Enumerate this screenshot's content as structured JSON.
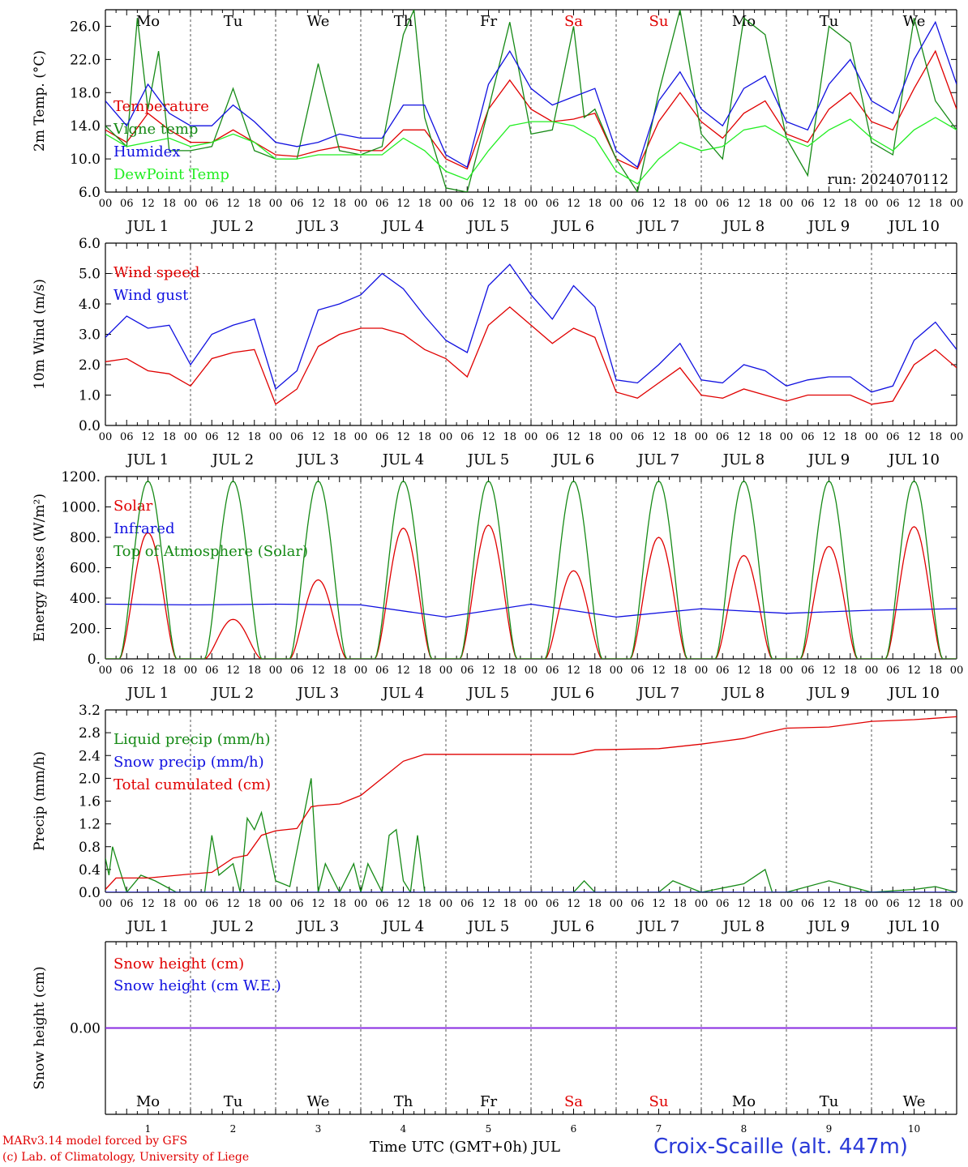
{
  "colors": {
    "red": "#e00000",
    "darkgreen": "#168a16",
    "blue": "#1010e0",
    "lightgreen": "#22ee22",
    "purple": "#8a2be2",
    "axis": "#000000",
    "grid": "#555555",
    "station": "#2a3ad8"
  },
  "timeline": {
    "days": 10,
    "steps_per_day": 24,
    "hour_ticks": [
      "00",
      "06",
      "12",
      "18"
    ],
    "final_tick": "00",
    "day_labels": [
      "JUL  1",
      "JUL  2",
      "JUL  3",
      "JUL  4",
      "JUL  5",
      "JUL  6",
      "JUL  7",
      "JUL  8",
      "JUL  9",
      "JUL 10"
    ],
    "weekdays": [
      "Mo",
      "Tu",
      "We",
      "Th",
      "Fr",
      "Sa",
      "Su",
      "Mo",
      "Tu",
      "We"
    ],
    "weekday_colors": [
      "#000000",
      "#000000",
      "#000000",
      "#000000",
      "#000000",
      "#e00000",
      "#e00000",
      "#000000",
      "#000000",
      "#000000"
    ],
    "day_numbers": [
      "1",
      "2",
      "3",
      "4",
      "5",
      "6",
      "7",
      "8",
      "9",
      "10"
    ]
  },
  "footer": {
    "credit_line1": "MARv3.14 model forced by GFS",
    "credit_line2": "(c) Lab. of Climatology, University of Liege",
    "xaxis_title": "Time UTC (GMT+0h) JUL",
    "station": "Croix-Scaille (alt. 447m)"
  },
  "chart_data": [
    {
      "type": "line",
      "ylabel": "2m Temp. (°C)",
      "ylim": [
        6,
        28
      ],
      "yticks": [
        6,
        10,
        14,
        18,
        22,
        26
      ],
      "ytick_labels": [
        "6.0",
        "10.0",
        "14.0",
        "18.0",
        "22.0",
        "26.0"
      ],
      "annotation": "run: 2024070112",
      "series": [
        {
          "name": "Temperature",
          "color": "#e00000",
          "x": [
            0,
            6,
            12,
            18,
            24,
            30,
            36,
            42,
            48,
            54,
            60,
            66,
            72,
            78,
            84,
            90,
            96,
            102,
            108,
            114,
            120,
            126,
            132,
            138,
            144,
            150,
            156,
            162,
            168,
            174,
            180,
            186,
            192,
            198,
            204,
            210,
            216,
            222,
            228,
            234,
            240
          ],
          "y": [
            13.5,
            12.0,
            15.5,
            13.5,
            12.0,
            12.0,
            13.5,
            12.0,
            10.5,
            10.3,
            11.0,
            11.5,
            11.0,
            11.0,
            13.5,
            13.5,
            10.0,
            8.8,
            16.0,
            19.5,
            16.0,
            14.5,
            14.8,
            15.5,
            10.0,
            8.8,
            14.5,
            18.0,
            14.5,
            12.5,
            15.5,
            17.0,
            13.0,
            12.0,
            16.0,
            18.0,
            14.5,
            13.5,
            18.5,
            23.0,
            16.0
          ]
        },
        {
          "name": "Vigne temp",
          "color": "#168a16",
          "x": [
            0,
            6,
            9,
            12,
            15,
            18,
            24,
            30,
            36,
            42,
            48,
            54,
            60,
            66,
            72,
            78,
            84,
            87,
            90,
            96,
            102,
            108,
            114,
            120,
            126,
            132,
            135,
            138,
            144,
            150,
            156,
            162,
            168,
            174,
            180,
            186,
            192,
            198,
            204,
            210,
            216,
            222,
            228,
            234,
            240
          ],
          "y": [
            14.0,
            11.5,
            27.0,
            16.0,
            23.0,
            11.0,
            11.0,
            11.5,
            18.5,
            11.0,
            10.0,
            10.0,
            21.5,
            11.0,
            10.5,
            11.5,
            25.0,
            28.0,
            15.0,
            6.5,
            6.0,
            16.0,
            26.5,
            13.0,
            13.5,
            26.0,
            15.0,
            16.0,
            10.0,
            6.0,
            18.0,
            28.0,
            13.0,
            10.0,
            27.0,
            25.0,
            12.5,
            8.0,
            26.0,
            24.0,
            12.0,
            10.5,
            27.0,
            17.0,
            13.5
          ]
        },
        {
          "name": "Humidex",
          "color": "#1010e0",
          "x": [
            0,
            6,
            12,
            18,
            24,
            30,
            36,
            42,
            48,
            54,
            60,
            66,
            72,
            78,
            84,
            90,
            96,
            102,
            108,
            114,
            120,
            126,
            132,
            138,
            144,
            150,
            156,
            162,
            168,
            174,
            180,
            186,
            192,
            198,
            204,
            210,
            216,
            222,
            228,
            234,
            240
          ],
          "y": [
            17.0,
            14.0,
            19.0,
            15.5,
            14.0,
            14.0,
            16.5,
            14.5,
            12.0,
            11.5,
            12.0,
            13.0,
            12.5,
            12.5,
            16.5,
            16.5,
            10.5,
            9.0,
            19.0,
            23.0,
            18.5,
            16.5,
            17.5,
            18.5,
            11.0,
            9.0,
            17.0,
            20.5,
            16.0,
            14.0,
            18.5,
            20.0,
            14.5,
            13.5,
            19.0,
            22.0,
            17.0,
            15.5,
            22.0,
            26.5,
            19.0
          ]
        },
        {
          "name": "DewPoint Temp",
          "color": "#22ee22",
          "x": [
            0,
            6,
            12,
            18,
            24,
            30,
            36,
            42,
            48,
            54,
            60,
            66,
            72,
            78,
            84,
            90,
            96,
            102,
            108,
            114,
            120,
            126,
            132,
            138,
            144,
            150,
            156,
            162,
            168,
            174,
            180,
            186,
            192,
            198,
            204,
            210,
            216,
            222,
            228,
            234,
            240
          ],
          "y": [
            13.0,
            11.5,
            12.0,
            12.5,
            11.5,
            12.0,
            13.0,
            12.0,
            10.0,
            10.0,
            10.5,
            10.5,
            10.5,
            10.5,
            12.5,
            11.0,
            8.5,
            7.5,
            11.0,
            14.0,
            14.5,
            14.5,
            14.0,
            12.5,
            8.5,
            7.0,
            10.0,
            12.0,
            11.0,
            11.5,
            13.5,
            14.0,
            12.5,
            11.5,
            13.5,
            14.8,
            12.5,
            11.0,
            13.5,
            15.0,
            13.5
          ]
        }
      ]
    },
    {
      "type": "line",
      "ylabel": "10m Wind (m/s)",
      "ylim": [
        0,
        6
      ],
      "yticks": [
        0,
        1,
        2,
        3,
        4,
        5,
        6
      ],
      "ytick_labels": [
        "0.0",
        "1.0",
        "2.0",
        "3.0",
        "4.0",
        "5.0",
        "6.0"
      ],
      "ref_line": 5,
      "series": [
        {
          "name": "Wind speed",
          "color": "#e00000",
          "x": [
            0,
            6,
            12,
            18,
            24,
            30,
            36,
            42,
            48,
            54,
            60,
            66,
            72,
            78,
            84,
            90,
            96,
            102,
            108,
            114,
            120,
            126,
            132,
            138,
            144,
            150,
            156,
            162,
            168,
            174,
            180,
            186,
            192,
            198,
            204,
            210,
            216,
            222,
            228,
            234,
            240
          ],
          "y": [
            2.1,
            2.2,
            1.8,
            1.7,
            1.3,
            2.2,
            2.4,
            2.5,
            0.7,
            1.2,
            2.6,
            3.0,
            3.2,
            3.2,
            3.0,
            2.5,
            2.2,
            1.6,
            3.3,
            3.9,
            3.3,
            2.7,
            3.2,
            2.9,
            1.1,
            0.9,
            1.4,
            1.9,
            1.0,
            0.9,
            1.2,
            1.0,
            0.8,
            1.0,
            1.0,
            1.0,
            0.7,
            0.8,
            2.0,
            2.5,
            1.9
          ]
        },
        {
          "name": "Wind gust",
          "color": "#1010e0",
          "x": [
            0,
            6,
            12,
            18,
            24,
            30,
            36,
            42,
            48,
            54,
            60,
            66,
            72,
            78,
            84,
            90,
            96,
            102,
            108,
            114,
            120,
            126,
            132,
            138,
            144,
            150,
            156,
            162,
            168,
            174,
            180,
            186,
            192,
            198,
            204,
            210,
            216,
            222,
            228,
            234,
            240
          ],
          "y": [
            2.9,
            3.6,
            3.2,
            3.3,
            2.0,
            3.0,
            3.3,
            3.5,
            1.2,
            1.8,
            3.8,
            4.0,
            4.3,
            5.0,
            4.5,
            3.6,
            2.8,
            2.4,
            4.6,
            5.3,
            4.3,
            3.5,
            4.6,
            3.9,
            1.5,
            1.4,
            2.0,
            2.7,
            1.5,
            1.4,
            2.0,
            1.8,
            1.3,
            1.5,
            1.6,
            1.6,
            1.1,
            1.3,
            2.8,
            3.4,
            2.5
          ]
        }
      ]
    },
    {
      "type": "line",
      "ylabel": "Energy fluxes (W/m²)",
      "ylim": [
        0,
        1200
      ],
      "yticks": [
        0,
        200,
        400,
        600,
        800,
        1000,
        1200
      ],
      "ytick_labels": [
        "0.",
        "200.",
        "400.",
        "600.",
        "800.",
        "1000.",
        "1200."
      ],
      "series": [
        {
          "name": "Solar",
          "color": "#e00000",
          "daily_peak_hour": 12,
          "daily_peaks": [
            830,
            260,
            520,
            860,
            880,
            580,
            800,
            680,
            740,
            870
          ]
        },
        {
          "name": "Infrared",
          "color": "#1010e0",
          "x": [
            0,
            24,
            48,
            72,
            96,
            120,
            144,
            168,
            192,
            216,
            240
          ],
          "y": [
            360,
            355,
            360,
            355,
            275,
            360,
            275,
            330,
            300,
            320,
            330
          ]
        },
        {
          "name": "Top of Atmosphere (Solar)",
          "color": "#168a16",
          "daily_peak_hour": 12,
          "daily_peak": 1170,
          "daylight_hours": 16
        }
      ]
    },
    {
      "type": "line",
      "ylabel": "Precip (mm/h)",
      "ylim": [
        0,
        3.2
      ],
      "yticks": [
        0,
        0.4,
        0.8,
        1.2,
        1.6,
        2.0,
        2.4,
        2.8,
        3.2
      ],
      "ytick_labels": [
        "0.0",
        "0.4",
        "0.8",
        "1.2",
        "1.6",
        "2.0",
        "2.4",
        "2.8",
        "3.2"
      ],
      "series": [
        {
          "name": "Liquid precip (mm/h)",
          "color": "#168a16",
          "x": [
            0,
            1,
            2,
            4,
            6,
            10,
            14,
            20,
            28,
            30,
            32,
            36,
            38,
            40,
            42,
            44,
            48,
            52,
            58,
            60,
            62,
            66,
            70,
            72,
            74,
            78,
            80,
            82,
            84,
            86,
            88,
            90,
            96,
            120,
            132,
            135,
            138,
            156,
            160,
            164,
            168,
            180,
            186,
            188,
            192,
            204,
            210,
            216,
            228,
            234,
            240
          ],
          "y": [
            0.6,
            0.3,
            0.8,
            0.4,
            0.0,
            0.3,
            0.2,
            0.0,
            0.0,
            1.0,
            0.3,
            0.5,
            0.0,
            1.3,
            1.1,
            1.4,
            0.2,
            0.1,
            2.0,
            0.0,
            0.5,
            0.0,
            0.5,
            0.0,
            0.5,
            0.0,
            1.0,
            1.1,
            0.2,
            0.0,
            1.0,
            0.0,
            0.0,
            0.0,
            0.0,
            0.2,
            0.0,
            0.0,
            0.2,
            0.1,
            0.0,
            0.15,
            0.4,
            0.0,
            0.0,
            0.2,
            0.1,
            0.0,
            0.05,
            0.1,
            0.0
          ]
        },
        {
          "name": "Snow precip (mm/h)",
          "color": "#1010e0",
          "x": [
            0,
            240
          ],
          "y": [
            0,
            0
          ]
        },
        {
          "name": "Total cumulated (cm)",
          "color": "#e00000",
          "x": [
            0,
            3,
            12,
            24,
            30,
            36,
            40,
            44,
            48,
            54,
            58,
            60,
            66,
            72,
            78,
            84,
            90,
            96,
            120,
            132,
            138,
            156,
            168,
            180,
            186,
            192,
            204,
            216,
            228,
            240
          ],
          "y": [
            0.05,
            0.25,
            0.25,
            0.32,
            0.35,
            0.6,
            0.65,
            1.0,
            1.08,
            1.12,
            1.5,
            1.52,
            1.55,
            1.7,
            2.0,
            2.3,
            2.42,
            2.42,
            2.42,
            2.42,
            2.5,
            2.52,
            2.6,
            2.7,
            2.8,
            2.88,
            2.9,
            3.0,
            3.03,
            3.08
          ]
        }
      ]
    },
    {
      "type": "line",
      "ylabel": "Snow height (cm)",
      "ylim": [
        -1,
        1
      ],
      "yticks": [
        0
      ],
      "ytick_labels": [
        "0.00"
      ],
      "series": [
        {
          "name": "Snow height (cm)",
          "color": "#e00000",
          "x": [
            0,
            240
          ],
          "y": [
            0,
            0
          ]
        },
        {
          "name": "Snow height (cm W.E.)",
          "color": "#1010e0",
          "x": [
            0,
            240
          ],
          "y": [
            0,
            0
          ]
        }
      ]
    }
  ]
}
